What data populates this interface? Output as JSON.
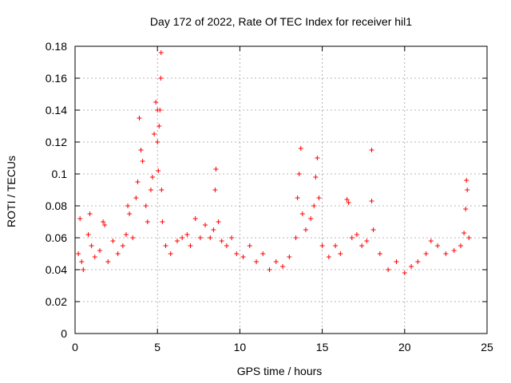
{
  "chart_data": {
    "type": "scatter",
    "title": "Day 172 of 2022, Rate Of TEC Index for receiver hil1",
    "xlabel": "GPS time / hours",
    "ylabel": "ROTI / TECUs",
    "xlim": [
      0,
      25
    ],
    "ylim": [
      0,
      0.18
    ],
    "xticks": [
      0,
      5,
      10,
      15,
      20,
      25
    ],
    "xtick_labels": [
      "0",
      "5",
      "10",
      "15",
      "20",
      "25"
    ],
    "yticks": [
      0,
      0.02,
      0.04,
      0.06,
      0.08,
      0.1,
      0.12,
      0.14,
      0.16,
      0.18
    ],
    "ytick_labels": [
      "0",
      "0.02",
      "0.04",
      "0.06",
      "0.08",
      "0.1",
      "0.12",
      "0.14",
      "0.16",
      "0.18"
    ],
    "grid": true,
    "marker": "+",
    "color": "#ff0000",
    "series": [
      {
        "points": [
          [
            0.2,
            0.05
          ],
          [
            0.3,
            0.072
          ],
          [
            0.4,
            0.045
          ],
          [
            0.5,
            0.04
          ],
          [
            0.8,
            0.062
          ],
          [
            0.9,
            0.075
          ],
          [
            1.0,
            0.055
          ],
          [
            1.2,
            0.048
          ],
          [
            1.5,
            0.052
          ],
          [
            1.7,
            0.07
          ],
          [
            1.8,
            0.068
          ],
          [
            2.0,
            0.045
          ],
          [
            2.3,
            0.058
          ],
          [
            2.6,
            0.05
          ],
          [
            2.9,
            0.055
          ],
          [
            3.1,
            0.062
          ],
          [
            3.2,
            0.08
          ],
          [
            3.3,
            0.075
          ],
          [
            3.5,
            0.06
          ],
          [
            3.7,
            0.085
          ],
          [
            3.8,
            0.095
          ],
          [
            3.9,
            0.135
          ],
          [
            4.0,
            0.115
          ],
          [
            4.1,
            0.108
          ],
          [
            4.3,
            0.08
          ],
          [
            4.4,
            0.07
          ],
          [
            4.6,
            0.09
          ],
          [
            4.7,
            0.098
          ],
          [
            4.8,
            0.125
          ],
          [
            4.9,
            0.145
          ],
          [
            5.0,
            0.14
          ],
          [
            5.0,
            0.12
          ],
          [
            5.05,
            0.102
          ],
          [
            5.1,
            0.13
          ],
          [
            5.15,
            0.14
          ],
          [
            5.2,
            0.16
          ],
          [
            5.22,
            0.176
          ],
          [
            5.25,
            0.09
          ],
          [
            5.3,
            0.07
          ],
          [
            5.5,
            0.055
          ],
          [
            5.8,
            0.05
          ],
          [
            6.2,
            0.058
          ],
          [
            6.5,
            0.06
          ],
          [
            6.8,
            0.062
          ],
          [
            7.0,
            0.055
          ],
          [
            7.3,
            0.072
          ],
          [
            7.6,
            0.06
          ],
          [
            7.9,
            0.068
          ],
          [
            8.2,
            0.06
          ],
          [
            8.4,
            0.065
          ],
          [
            8.5,
            0.09
          ],
          [
            8.55,
            0.103
          ],
          [
            8.7,
            0.07
          ],
          [
            8.9,
            0.058
          ],
          [
            9.2,
            0.055
          ],
          [
            9.5,
            0.06
          ],
          [
            9.8,
            0.05
          ],
          [
            10.2,
            0.048
          ],
          [
            10.6,
            0.055
          ],
          [
            11.0,
            0.045
          ],
          [
            11.4,
            0.05
          ],
          [
            11.8,
            0.04
          ],
          [
            12.2,
            0.045
          ],
          [
            12.6,
            0.042
          ],
          [
            13.0,
            0.048
          ],
          [
            13.4,
            0.06
          ],
          [
            13.5,
            0.085
          ],
          [
            13.6,
            0.1
          ],
          [
            13.7,
            0.116
          ],
          [
            13.8,
            0.075
          ],
          [
            14.0,
            0.065
          ],
          [
            14.3,
            0.072
          ],
          [
            14.5,
            0.08
          ],
          [
            14.6,
            0.098
          ],
          [
            14.7,
            0.11
          ],
          [
            14.8,
            0.085
          ],
          [
            15.0,
            0.055
          ],
          [
            15.4,
            0.048
          ],
          [
            15.8,
            0.055
          ],
          [
            16.1,
            0.05
          ],
          [
            16.5,
            0.084
          ],
          [
            16.6,
            0.082
          ],
          [
            16.8,
            0.06
          ],
          [
            17.1,
            0.062
          ],
          [
            17.4,
            0.055
          ],
          [
            17.7,
            0.058
          ],
          [
            18.0,
            0.115
          ],
          [
            18.0,
            0.083
          ],
          [
            18.1,
            0.065
          ],
          [
            18.5,
            0.05
          ],
          [
            19.0,
            0.04
          ],
          [
            19.5,
            0.045
          ],
          [
            20.0,
            0.038
          ],
          [
            20.4,
            0.042
          ],
          [
            20.8,
            0.045
          ],
          [
            21.3,
            0.05
          ],
          [
            21.6,
            0.058
          ],
          [
            22.0,
            0.055
          ],
          [
            22.5,
            0.05
          ],
          [
            23.0,
            0.052
          ],
          [
            23.4,
            0.055
          ],
          [
            23.6,
            0.063
          ],
          [
            23.7,
            0.078
          ],
          [
            23.75,
            0.096
          ],
          [
            23.8,
            0.09
          ],
          [
            23.9,
            0.06
          ]
        ]
      }
    ]
  }
}
